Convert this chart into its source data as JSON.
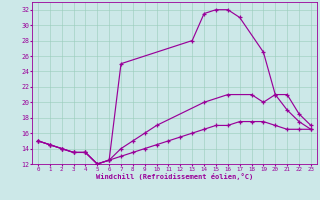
{
  "xlabel": "Windchill (Refroidissement éolien,°C)",
  "bg_color": "#cce8e8",
  "line_color": "#990099",
  "xlim": [
    -0.5,
    23.5
  ],
  "ylim": [
    12,
    33
  ],
  "xticks": [
    0,
    1,
    2,
    3,
    4,
    5,
    6,
    7,
    8,
    9,
    10,
    11,
    12,
    13,
    14,
    15,
    16,
    17,
    18,
    19,
    20,
    21,
    22,
    23
  ],
  "yticks": [
    12,
    14,
    16,
    18,
    20,
    22,
    24,
    26,
    28,
    30,
    32
  ],
  "line1_x": [
    0,
    1,
    2,
    3,
    4,
    5,
    6,
    7,
    13,
    14,
    15,
    16,
    17,
    19,
    20,
    21,
    22,
    23
  ],
  "line1_y": [
    15,
    14.5,
    14,
    13.5,
    13.5,
    12,
    12.5,
    25,
    28,
    31.5,
    32,
    32,
    31,
    26.5,
    21,
    19,
    17.5,
    16.5
  ],
  "line2_x": [
    0,
    1,
    2,
    3,
    4,
    5,
    6,
    7,
    8,
    9,
    10,
    14,
    16,
    18,
    19,
    20,
    21,
    22,
    23
  ],
  "line2_y": [
    15,
    14.5,
    14,
    13.5,
    13.5,
    12,
    12.5,
    14,
    15,
    16,
    17,
    20,
    21,
    21,
    20,
    21,
    21,
    18.5,
    17
  ],
  "line3_x": [
    0,
    1,
    2,
    3,
    4,
    5,
    6,
    7,
    8,
    9,
    10,
    11,
    12,
    13,
    14,
    15,
    16,
    17,
    18,
    19,
    20,
    21,
    22,
    23
  ],
  "line3_y": [
    15,
    14.5,
    14,
    13.5,
    13.5,
    12,
    12.5,
    13,
    13.5,
    14,
    14.5,
    15,
    15.5,
    16,
    16.5,
    17,
    17,
    17.5,
    17.5,
    17.5,
    17,
    16.5,
    16.5,
    16.5
  ]
}
